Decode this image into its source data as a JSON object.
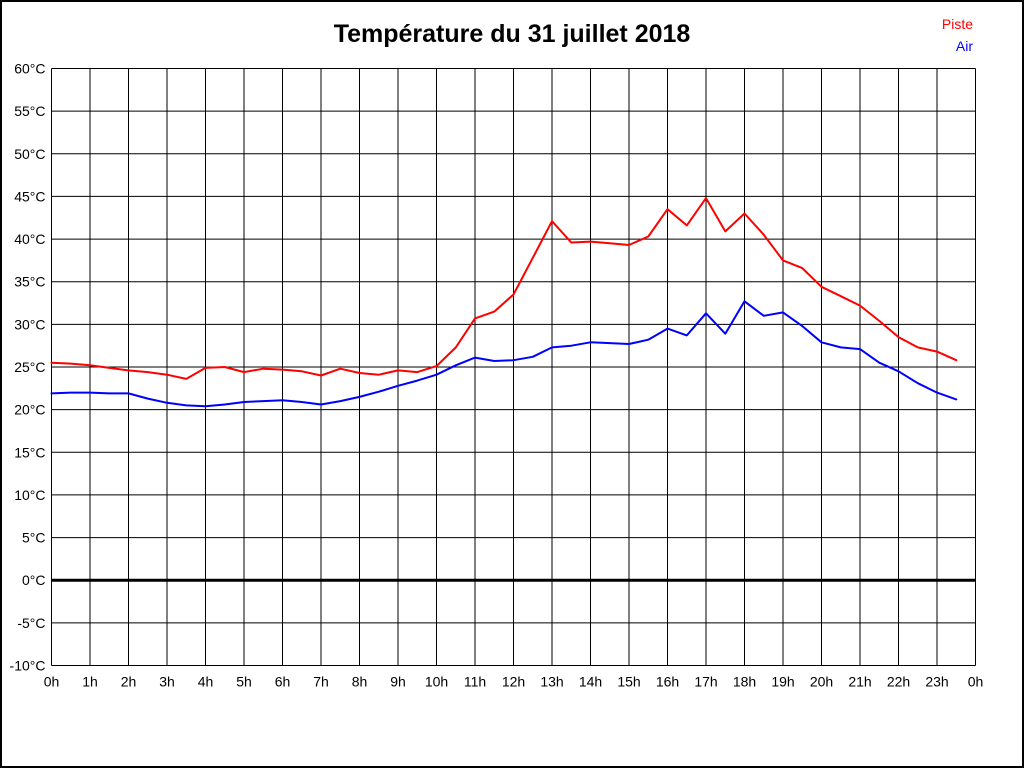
{
  "title": "Température du 31 juillet 2018",
  "legend": [
    {
      "label": "Piste",
      "color": "#ff0000"
    },
    {
      "label": "Air",
      "color": "#0000ff"
    }
  ],
  "chart_data": {
    "type": "line",
    "title": "Température du 31 juillet 2018",
    "xlabel": "",
    "ylabel": "",
    "xlim_hours": [
      0,
      24
    ],
    "ylim": [
      -10,
      60
    ],
    "y_tick_step": 5,
    "grid": true,
    "legend_position": "top-right",
    "background_color": "#ffffff",
    "grid_color": "#000000",
    "text_color": "#000000",
    "zero_line_temp": 0,
    "x_ticks": [
      "0h",
      "1h",
      "2h",
      "3h",
      "4h",
      "5h",
      "6h",
      "7h",
      "8h",
      "9h",
      "10h",
      "11h",
      "12h",
      "13h",
      "14h",
      "15h",
      "16h",
      "17h",
      "18h",
      "19h",
      "20h",
      "21h",
      "22h",
      "23h",
      "0h"
    ],
    "y_ticks": [
      "60°C",
      "55°C",
      "50°C",
      "45°C",
      "40°C",
      "35°C",
      "30°C",
      "25°C",
      "20°C",
      "15°C",
      "10°C",
      "5°C",
      "0°C",
      "-5°C",
      "-10°C"
    ],
    "x_hours": [
      0,
      0.5,
      1,
      1.5,
      2,
      2.5,
      3,
      3.5,
      4,
      4.5,
      5,
      5.5,
      6,
      6.5,
      7,
      7.5,
      8,
      8.5,
      9,
      9.5,
      10,
      10.5,
      11,
      11.5,
      12,
      12.5,
      13,
      13.5,
      14,
      14.5,
      15,
      15.5,
      16,
      16.5,
      17,
      17.5,
      18,
      18.5,
      19,
      19.5,
      20,
      20.5,
      21,
      21.5,
      22,
      22.5,
      23,
      23.5
    ],
    "series": [
      {
        "name": "Piste",
        "color": "#ff0000",
        "values": [
          25.5,
          25.4,
          25.2,
          24.9,
          24.6,
          24.4,
          24.1,
          23.6,
          24.9,
          25.0,
          24.4,
          24.8,
          24.7,
          24.5,
          24.0,
          24.8,
          24.3,
          24.1,
          24.6,
          24.4,
          25.1,
          27.3,
          30.7,
          31.5,
          33.5,
          37.8,
          42.1,
          39.6,
          39.7,
          39.5,
          39.3,
          40.3,
          43.5,
          41.6,
          44.8,
          40.9,
          43.0,
          40.5,
          37.5,
          36.6,
          34.4,
          33.3,
          32.2,
          30.4,
          28.5,
          27.3,
          26.8,
          25.8
        ]
      },
      {
        "name": "Air",
        "color": "#0000ff",
        "values": [
          21.9,
          22.0,
          22.0,
          21.9,
          21.9,
          21.3,
          20.8,
          20.5,
          20.4,
          20.6,
          20.9,
          21.0,
          21.1,
          20.9,
          20.6,
          21.0,
          21.5,
          22.1,
          22.8,
          23.4,
          24.1,
          25.2,
          26.1,
          25.7,
          25.8,
          26.2,
          27.3,
          27.5,
          27.9,
          27.8,
          27.7,
          28.2,
          29.5,
          28.7,
          31.3,
          28.9,
          32.7,
          31.0,
          31.4,
          29.8,
          27.9,
          27.3,
          27.1,
          25.5,
          24.5,
          23.1,
          22.0,
          21.2
        ]
      }
    ]
  }
}
